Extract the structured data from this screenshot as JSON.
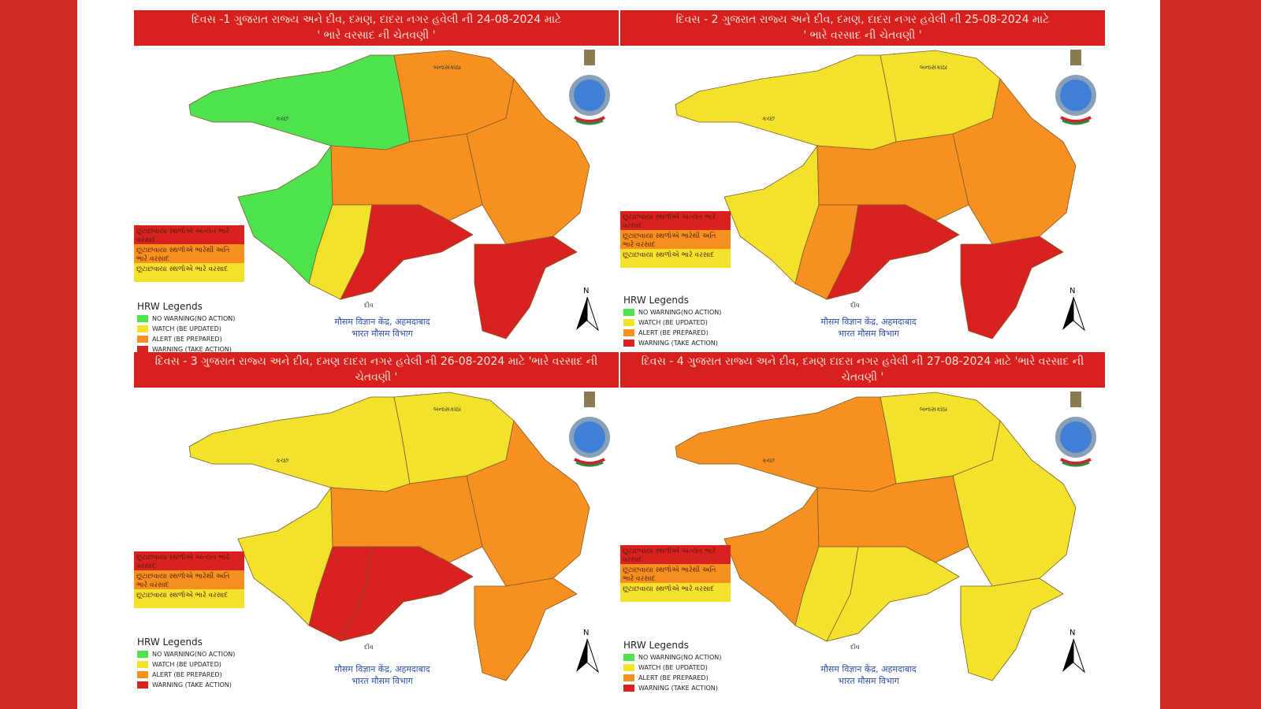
{
  "colors": {
    "green": "#4ee34e",
    "yellow": "#f3e22c",
    "orange": "#f7901e",
    "red": "#d9221f"
  },
  "rain_legend": [
    "છૂટાછવાયા સ્થળોએ અત્યંત ભારે વરસાદ",
    "છૂટાછવાયા સ્થળોએ ભારેથી અતિ ભારે વરસાદ",
    "છૂટાછવાયા સ્થળોએ ભારે વરસાદ"
  ],
  "hrw": {
    "title": "HRW Legends",
    "items": [
      "NO WARNING(NO ACTION)",
      "WATCH (BE UPDATED)",
      "ALERT (BE PREPARED)",
      "WARNING (TAKE ACTION)"
    ]
  },
  "footer": {
    "line1": "मौसम विज्ञान केंद्र, अहमदाबाद",
    "line2": "भारत मौसम विभाग"
  },
  "north": "N",
  "labels": {
    "kutch": "કચ્છ",
    "banaskantha": "બનાસકાંઠા",
    "diu": "દીવ"
  },
  "maps": [
    {
      "title1": "દિવસ -1 ગુજરાત રાજ્ય અને દીવ, દમણ, દાદરા નગર હવેલી ની 24-08-2024 માટે",
      "title2": "' ભારે વરસાદ ની ચેતવણી '",
      "regions": {
        "kutch": "green",
        "north": "orange",
        "east": "orange",
        "sauW": "green",
        "sauN": "orange",
        "sauSW": "yellow",
        "sauSE": "red",
        "south": "red"
      }
    },
    {
      "title1": "દિવસ - 2 ગુજરાત રાજ્ય અને દીવ, દમણ, દાદરા નગર હવેલી ની 25-08-2024 માટે",
      "title2": "' ભારે વરસાદ ની ચેતવણી '",
      "regions": {
        "kutch": "yellow",
        "north": "yellow",
        "east": "orange",
        "sauW": "yellow",
        "sauN": "orange",
        "sauSW": "orange",
        "sauSE": "red",
        "south": "red"
      }
    },
    {
      "title1": "દિવસ - 3 ગુજરાત રાજ્ય અને દીવ, દમણ દાદરા નગર હવેલી ની 26-08-2024 માટે 'ભારે વરસાદ ની",
      "title2": "ચેતવણી '",
      "regions": {
        "kutch": "yellow",
        "north": "yellow",
        "east": "orange",
        "sauW": "yellow",
        "sauN": "orange",
        "sauSW": "red",
        "sauSE": "red",
        "south": "orange"
      }
    },
    {
      "title1": "દિવસ - 4 ગુજરાત રાજ્ય અને દીવ, દમણ દાદરા નગર હવેલી ની 27-08-2024 માટે 'ભારે વરસાદ ની",
      "title2": "ચેતવણી '",
      "regions": {
        "kutch": "orange",
        "north": "yellow",
        "east": "yellow",
        "sauW": "orange",
        "sauN": "orange",
        "sauSW": "yellow",
        "sauSE": "yellow",
        "south": "yellow"
      }
    }
  ]
}
